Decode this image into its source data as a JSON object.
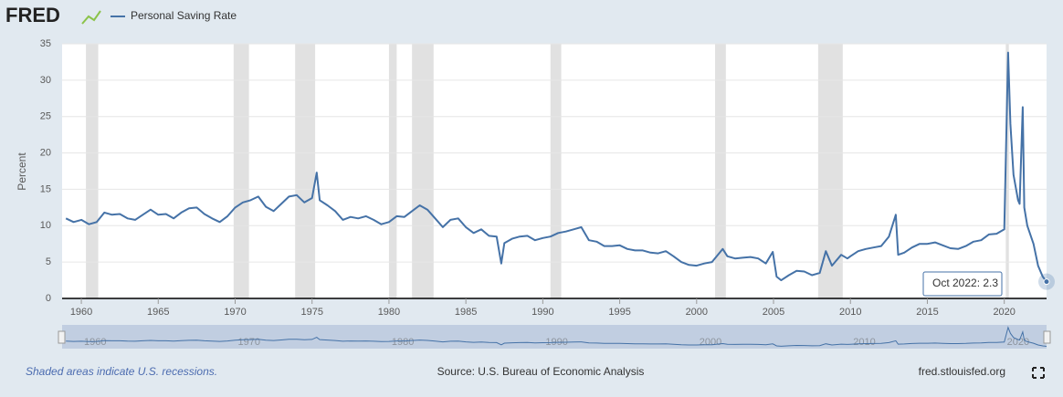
{
  "chart_data": {
    "type": "line",
    "logo": "FRED",
    "legend": "Personal Saving Rate",
    "ylabel": "Percent",
    "note": "Shaded areas indicate U.S. recessions.",
    "source": "Source: U.S. Bureau of Economic Analysis",
    "site": "fred.stlouisfed.org",
    "tooltip": {
      "label": "Oct 2022:",
      "value": 2.3
    },
    "color": "#4572a7",
    "recession_color": "#e1e1e1",
    "xlim": [
      1958.75,
      2022.75
    ],
    "ylim": [
      0,
      35
    ],
    "xticks": [
      1960,
      1965,
      1970,
      1975,
      1980,
      1985,
      1990,
      1995,
      2000,
      2005,
      2010,
      2015,
      2020
    ],
    "yticks": [
      0,
      5,
      10,
      15,
      20,
      25,
      30,
      35
    ],
    "navigator_ticks": [
      1960,
      1970,
      1980,
      1990,
      2000,
      2010,
      2020
    ],
    "recessions": [
      [
        1960.3,
        1961.1
      ],
      [
        1969.9,
        1970.9
      ],
      [
        1973.9,
        1975.2
      ],
      [
        1980.0,
        1980.5
      ],
      [
        1981.5,
        1982.9
      ],
      [
        1990.5,
        1991.2
      ],
      [
        2001.2,
        2001.9
      ],
      [
        2007.9,
        2009.5
      ],
      [
        2020.1,
        2020.3
      ]
    ],
    "series": [
      {
        "name": "Personal Saving Rate",
        "color": "#4572a7",
        "x": [
          1959.0,
          1959.5,
          1960.0,
          1960.5,
          1961.0,
          1961.5,
          1962.0,
          1962.5,
          1963.0,
          1963.5,
          1964.0,
          1964.5,
          1965.0,
          1965.5,
          1966.0,
          1966.5,
          1967.0,
          1967.5,
          1968.0,
          1968.5,
          1969.0,
          1969.5,
          1970.0,
          1970.5,
          1971.0,
          1971.5,
          1972.0,
          1972.5,
          1973.0,
          1973.5,
          1974.0,
          1974.5,
          1975.0,
          1975.3,
          1975.5,
          1976.0,
          1976.5,
          1977.0,
          1977.5,
          1978.0,
          1978.5,
          1979.0,
          1979.5,
          1980.0,
          1980.5,
          1981.0,
          1981.5,
          1982.0,
          1982.5,
          1983.0,
          1983.5,
          1984.0,
          1984.5,
          1985.0,
          1985.5,
          1986.0,
          1986.5,
          1987.0,
          1987.3,
          1987.5,
          1988.0,
          1988.5,
          1989.0,
          1989.5,
          1990.0,
          1990.5,
          1991.0,
          1991.5,
          1992.0,
          1992.5,
          1993.0,
          1993.5,
          1994.0,
          1994.5,
          1995.0,
          1995.5,
          1996.0,
          1996.5,
          1997.0,
          1997.5,
          1998.0,
          1998.5,
          1999.0,
          1999.5,
          2000.0,
          2000.5,
          2001.0,
          2001.7,
          2002.0,
          2002.5,
          2003.0,
          2003.5,
          2004.0,
          2004.5,
          2004.95,
          2005.2,
          2005.5,
          2006.0,
          2006.5,
          2007.0,
          2007.5,
          2008.0,
          2008.4,
          2008.8,
          2009.4,
          2009.8,
          2010.0,
          2010.5,
          2011.0,
          2011.5,
          2012.0,
          2012.5,
          2012.95,
          2013.1,
          2013.5,
          2014.0,
          2014.5,
          2015.0,
          2015.5,
          2016.0,
          2016.5,
          2017.0,
          2017.5,
          2018.0,
          2018.5,
          2019.0,
          2019.5,
          2020.0,
          2020.25,
          2020.4,
          2020.6,
          2020.9,
          2021.0,
          2021.2,
          2021.3,
          2021.5,
          2021.9,
          2022.2,
          2022.5,
          2022.75
        ],
        "values": [
          11,
          10.5,
          10.8,
          10.2,
          10.5,
          11.8,
          11.5,
          11.6,
          11.0,
          10.8,
          11.5,
          12.2,
          11.5,
          11.6,
          11.0,
          11.8,
          12.4,
          12.5,
          11.6,
          11.0,
          10.5,
          11.3,
          12.5,
          13.2,
          13.5,
          14.0,
          12.6,
          12.0,
          13.0,
          14.0,
          14.2,
          13.2,
          13.8,
          17.3,
          13.5,
          12.8,
          12.0,
          10.8,
          11.2,
          11.0,
          11.3,
          10.8,
          10.2,
          10.5,
          11.3,
          11.2,
          12.0,
          12.8,
          12.2,
          11.0,
          9.8,
          10.8,
          11.0,
          9.8,
          9.0,
          9.5,
          8.6,
          8.5,
          4.8,
          7.6,
          8.2,
          8.5,
          8.6,
          8.0,
          8.3,
          8.5,
          9.0,
          9.2,
          9.5,
          9.8,
          8.0,
          7.8,
          7.2,
          7.2,
          7.3,
          6.8,
          6.6,
          6.6,
          6.3,
          6.2,
          6.5,
          5.8,
          5.0,
          4.6,
          4.5,
          4.8,
          5.0,
          6.8,
          5.8,
          5.5,
          5.6,
          5.7,
          5.5,
          4.8,
          6.4,
          3.0,
          2.5,
          3.2,
          3.8,
          3.7,
          3.2,
          3.5,
          6.5,
          4.5,
          6.0,
          5.5,
          5.8,
          6.5,
          6.8,
          7.0,
          7.2,
          8.5,
          11.5,
          6.0,
          6.3,
          7.0,
          7.5,
          7.5,
          7.7,
          7.3,
          6.9,
          6.8,
          7.2,
          7.8,
          8.0,
          8.8,
          8.9,
          9.5,
          33.8,
          24,
          17,
          13.5,
          13.0,
          26.3,
          12.5,
          10.0,
          7.5,
          4.5,
          3.0,
          2.3
        ]
      }
    ]
  }
}
